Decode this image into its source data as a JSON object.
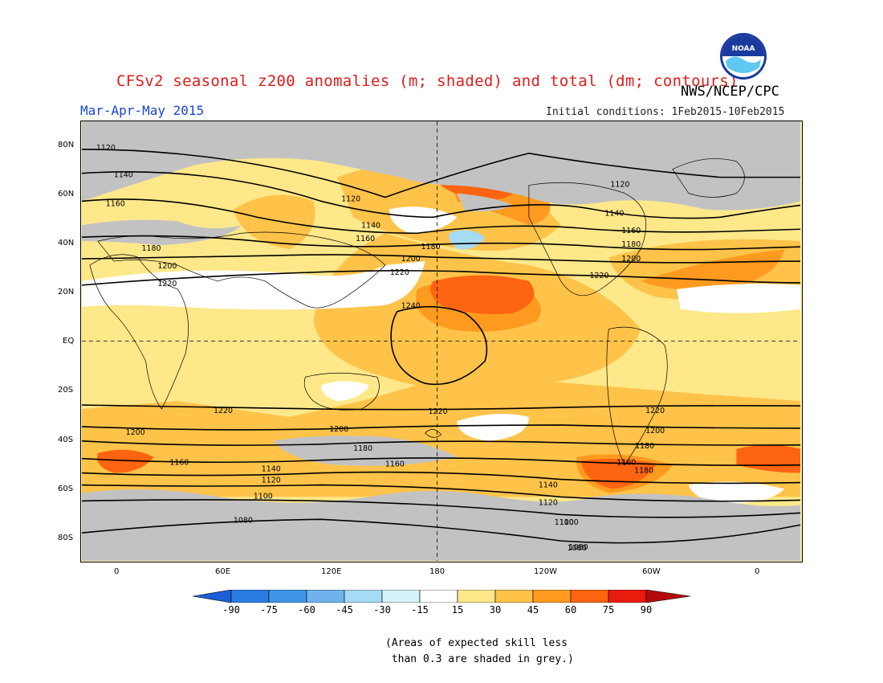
{
  "title": "CFSv2 seasonal z200 anomalies (m; shaded) and total (dm; contours)",
  "agency": "NWS/NCEP/CPC",
  "season": "Mar-Apr-May 2015",
  "initial_conditions": "Initial conditions: 1Feb2015-10Feb2015",
  "logo": {
    "icon": "noaa-logo-icon",
    "text": "NOAA"
  },
  "lat_labels": [
    "80N",
    "60N",
    "40N",
    "20N",
    "EQ",
    "20S",
    "40S",
    "60S",
    "80S"
  ],
  "lon_labels": [
    "0",
    "60E",
    "120E",
    "180",
    "120W",
    "60W",
    "0"
  ],
  "colorbar": {
    "labels": [
      "-90",
      "-75",
      "-60",
      "-45",
      "-30",
      "-15",
      "15",
      "30",
      "45",
      "60",
      "75",
      "90"
    ],
    "colors": [
      "#1c5fd6",
      "#2a7de0",
      "#3f95e8",
      "#6fb3ee",
      "#a6dbf5",
      "#d4f3fb",
      "#ffffff",
      "#ffe88a",
      "#ffc34a",
      "#ff9a20",
      "#ff6410",
      "#e81c0c",
      "#b40a0a"
    ]
  },
  "anomaly_colors": {
    "low_skill_grey": "#c2c2c2",
    "neutral": "#ffffff",
    "a15": "#ffe88a",
    "a30": "#ffc34a",
    "a45": "#ff9a20",
    "a60": "#ff6410",
    "a75": "#e81c0c",
    "neg15": "#d4f3fb",
    "neg30": "#a6dbf5"
  },
  "contour_labels": [
    "1120",
    "1140",
    "1160",
    "1180",
    "1200",
    "1220",
    "1240",
    "1220",
    "1200",
    "1180",
    "1160",
    "1140",
    "1120",
    "1100",
    "1080",
    "1120",
    "1140",
    "1160",
    "1180",
    "1200",
    "1220",
    "1120",
    "1140",
    "1160",
    "1180",
    "1200",
    "1220",
    "1220",
    "1200",
    "1180",
    "1160",
    "1140",
    "1120",
    "1100",
    "1080",
    "1220",
    "1200",
    "1180",
    "1160",
    "1100",
    "1080"
  ],
  "note_line1": "(Areas of expected skill less",
  "note_line2": " than 0.3 are shaded in grey.)"
}
